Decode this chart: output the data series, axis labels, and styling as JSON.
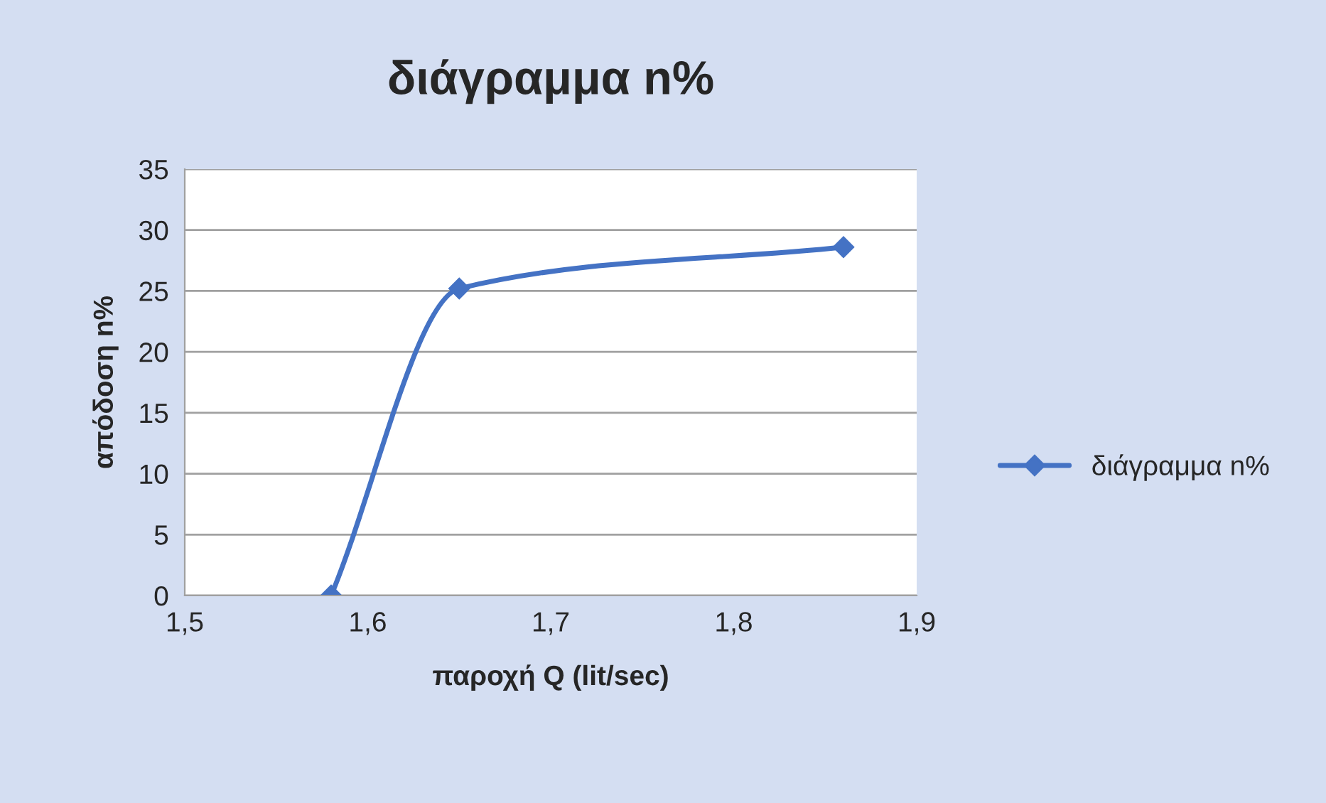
{
  "chart_data": {
    "type": "line",
    "title": "διάγραμμα n%",
    "xlabel": "παροχή Q (lit/sec)",
    "ylabel": "απόδοση n%",
    "series": [
      {
        "name": "διάγραμμα n%",
        "color": "#4472c4",
        "x": [
          1.58,
          1.65,
          1.86
        ],
        "values": [
          0,
          25.2,
          28.6
        ]
      }
    ],
    "xlim": [
      1.5,
      1.9
    ],
    "xticks": [
      {
        "value": 1.5,
        "label": "1,5"
      },
      {
        "value": 1.6,
        "label": "1,6"
      },
      {
        "value": 1.7,
        "label": "1,7"
      },
      {
        "value": 1.8,
        "label": "1,8"
      },
      {
        "value": 1.9,
        "label": "1,9"
      }
    ],
    "ylim": [
      0,
      35
    ],
    "yticks": [
      0,
      5,
      10,
      15,
      20,
      25,
      30,
      35
    ],
    "grid": "y",
    "legend": "right",
    "marker": "diamond",
    "line_style": "solid"
  }
}
